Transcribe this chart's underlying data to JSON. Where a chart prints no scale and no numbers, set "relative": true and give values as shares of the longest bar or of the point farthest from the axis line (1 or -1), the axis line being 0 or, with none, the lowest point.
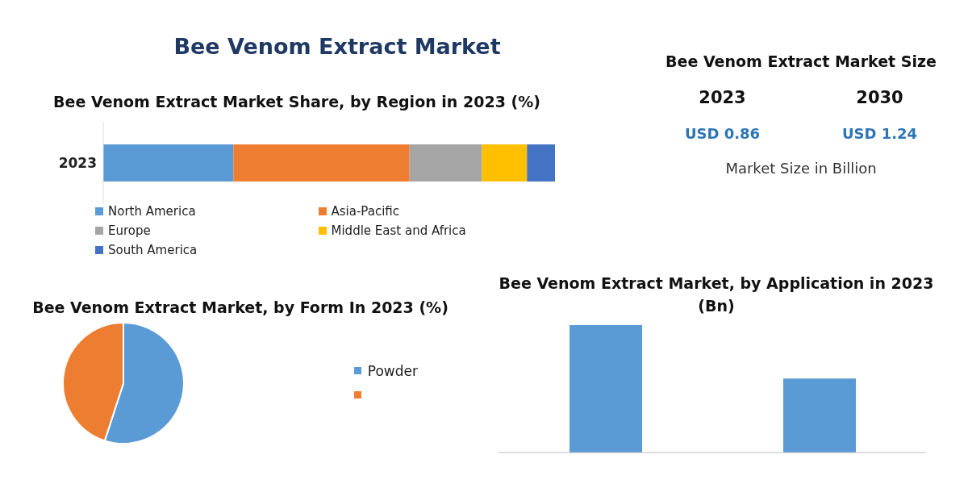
{
  "chart_data": [
    {
      "type": "other",
      "title": "Bee Venom Extract Market"
    },
    {
      "type": "bar",
      "title": "Bee Venom Extract Market Share, by Region in 2023 (%)",
      "orientation": "horizontal",
      "stacked": true,
      "relative": true,
      "categories": [
        "2023"
      ],
      "legend": "bottom",
      "series": [
        {
          "name": "North America",
          "color": "#5b9bd5",
          "values": [
            0.288
          ]
        },
        {
          "name": "Asia-Pacific",
          "color": "#ed7d31",
          "values": [
            0.39
          ]
        },
        {
          "name": "Europe",
          "color": "#a5a5a5",
          "values": [
            0.16
          ]
        },
        {
          "name": "Middle East and Africa",
          "color": "#ffc000",
          "values": [
            0.1
          ]
        },
        {
          "name": "South America",
          "color": "#4472c4",
          "values": [
            0.062
          ]
        }
      ]
    },
    {
      "type": "other",
      "title": "Bee Venom Extract Market Size",
      "annotations": [
        "2023",
        "2030",
        "USD 0.86",
        "USD 1.24",
        "Market Size in Billion"
      ]
    },
    {
      "type": "pie",
      "title": "Bee Venom Extract Market, by Form In 2023 (%)",
      "categories": [
        "Powder",
        null
      ],
      "values": [
        55,
        45
      ],
      "colors": [
        "#5b9bd5",
        "#ed7d31"
      ],
      "legend": "right"
    },
    {
      "type": "bar",
      "title": "Bee Venom Extract Market, by Application in 2023 (Bn)",
      "relative": true,
      "categories": [
        null,
        null
      ],
      "values": [
        1,
        0.58
      ],
      "color": "#5b9bd5"
    }
  ]
}
